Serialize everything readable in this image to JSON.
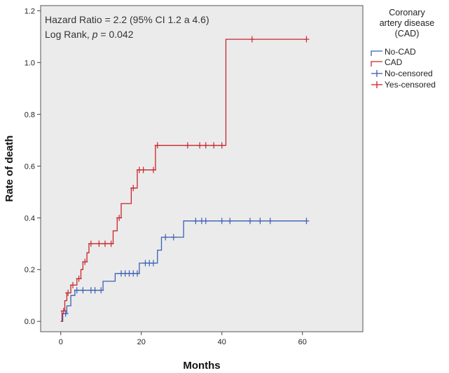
{
  "chart_data": {
    "type": "line",
    "subtype": "kaplan-meier-step",
    "xlabel": "Months",
    "ylabel": "Rate of death",
    "xlim": [
      -5,
      75
    ],
    "ylim": [
      -0.04,
      1.22
    ],
    "xticks": [
      0,
      20,
      40,
      60
    ],
    "yticks": [
      0.0,
      0.2,
      0.4,
      0.6,
      0.8,
      1.0,
      1.2
    ],
    "ytick_labels": [
      "0.0",
      "0.2",
      "0.4",
      "0.6",
      "0.8",
      "1.0",
      "1.2"
    ],
    "annotations": {
      "hazard_ratio": "Hazard Ratio = 2.2 (95% CI 1.2 a 4.6)",
      "log_rank_prefix": "Log Rank, ",
      "log_rank_p": "p",
      "log_rank_suffix": " = 0.042"
    },
    "legend": {
      "title_lines": [
        "Coronary",
        "artery disease",
        "(CAD)"
      ],
      "entries": [
        "No-CAD",
        "CAD",
        "No-censored",
        "Yes-censored"
      ]
    },
    "colors": {
      "no_cad": "#3a5fb5",
      "cad": "#c8262c",
      "plot_bg": "#ebebeb"
    },
    "series": [
      {
        "name": "No-CAD",
        "steps": [
          [
            0,
            0.0
          ],
          [
            0.5,
            0.03
          ],
          [
            1.5,
            0.06
          ],
          [
            2.5,
            0.1
          ],
          [
            3.5,
            0.12
          ],
          [
            10.5,
            0.155
          ],
          [
            13.5,
            0.185
          ],
          [
            19.5,
            0.225
          ],
          [
            24,
            0.275
          ],
          [
            25,
            0.325
          ],
          [
            30.5,
            0.388
          ],
          [
            61,
            0.388
          ]
        ],
        "censored": [
          1.2,
          4,
          5.5,
          7.5,
          8.5,
          10,
          15,
          16,
          17,
          18,
          19,
          21,
          22,
          23,
          26,
          28,
          33.5,
          35,
          36,
          40,
          42,
          47,
          49.5,
          52,
          61
        ]
      },
      {
        "name": "CAD",
        "steps": [
          [
            0,
            0.0
          ],
          [
            0.3,
            0.04
          ],
          [
            1,
            0.08
          ],
          [
            1.5,
            0.11
          ],
          [
            2.5,
            0.14
          ],
          [
            4,
            0.165
          ],
          [
            5,
            0.2
          ],
          [
            5.5,
            0.23
          ],
          [
            6.5,
            0.265
          ],
          [
            7,
            0.3
          ],
          [
            13,
            0.35
          ],
          [
            14,
            0.4
          ],
          [
            15,
            0.455
          ],
          [
            17.5,
            0.515
          ],
          [
            19,
            0.585
          ],
          [
            23.5,
            0.68
          ],
          [
            41,
            1.09
          ],
          [
            61,
            1.09
          ]
        ],
        "censored": [
          0.7,
          1.8,
          3,
          4.5,
          6,
          7.5,
          9.5,
          11,
          12.5,
          14.5,
          18,
          19.5,
          20.5,
          23,
          24,
          31.5,
          34.5,
          36,
          38,
          40,
          47.5,
          61
        ]
      }
    ]
  }
}
